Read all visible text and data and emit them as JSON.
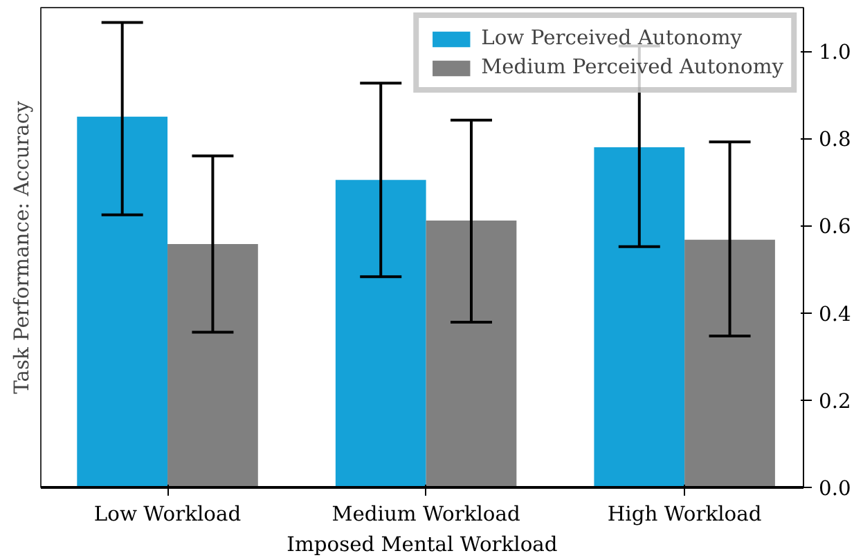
{
  "chart_data": {
    "type": "bar",
    "xlabel": "Imposed Mental Workload",
    "ylabel": "Task Performance: Accuracy",
    "categories": [
      "Low Workload",
      "Medium Workload",
      "High Workload"
    ],
    "series": [
      {
        "name": "Low Perceived Autonomy",
        "color": "#15a2d8",
        "values": [
          0.85,
          0.705,
          0.78
        ],
        "errors": [
          [
            0.625,
            1.066
          ],
          [
            0.483,
            0.927
          ],
          [
            0.552,
            1.012
          ]
        ]
      },
      {
        "name": "Medium Perceived Autonomy",
        "color": "#808080",
        "values": [
          0.558,
          0.612,
          0.568
        ],
        "errors": [
          [
            0.356,
            0.76
          ],
          [
            0.379,
            0.842
          ],
          [
            0.347,
            0.792
          ]
        ]
      }
    ],
    "ylim": [
      0,
      1.1
    ],
    "yticks": [
      {
        "value": 0.0,
        "label": "0.0"
      },
      {
        "value": 0.2,
        "label": "0.2"
      },
      {
        "value": 0.4,
        "label": "0.4"
      },
      {
        "value": 0.6,
        "label": "0.6"
      },
      {
        "value": 0.8,
        "label": "0.8"
      },
      {
        "value": 1.0,
        "label": "1.0"
      }
    ],
    "grid": false,
    "legend": "top right"
  }
}
